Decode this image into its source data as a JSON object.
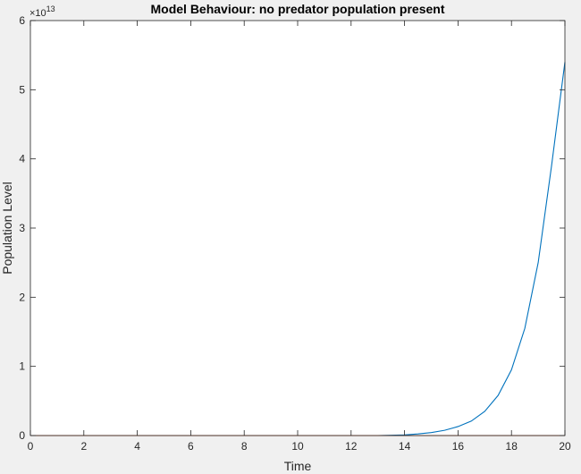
{
  "chart_data": {
    "type": "line",
    "title": "Model Behaviour: no predator population present",
    "xlabel": "Time",
    "ylabel": "Population Level",
    "xlim": [
      0,
      20
    ],
    "ylim": [
      0,
      60000000000000
    ],
    "y_exponent_label": {
      "base": "×10",
      "exponent": "13"
    },
    "x_ticks": [
      "0",
      "2",
      "4",
      "6",
      "8",
      "10",
      "12",
      "14",
      "16",
      "18",
      "20"
    ],
    "y_ticks": [
      "0",
      "1",
      "2",
      "3",
      "4",
      "5",
      "6"
    ],
    "grid": false,
    "series": [
      {
        "color": "#0072bd",
        "x": [
          0,
          2,
          4,
          6,
          8,
          10,
          12,
          13,
          14,
          14.5,
          15,
          15.5,
          16,
          16.5,
          17,
          17.5,
          18,
          18.5,
          19,
          19.5,
          20
        ],
        "y": [
          0,
          0,
          0,
          0,
          0,
          0,
          0,
          0,
          90000000000,
          230000000000,
          430000000000,
          760000000000,
          1300000000000,
          2100000000000,
          3500000000000,
          5800000000000,
          9500000000000,
          15500000000000,
          25000000000000,
          39000000000000,
          54000000000000
        ]
      },
      {
        "color": "#d95319",
        "x": [
          0,
          20
        ],
        "y": [
          0,
          0
        ]
      }
    ]
  }
}
